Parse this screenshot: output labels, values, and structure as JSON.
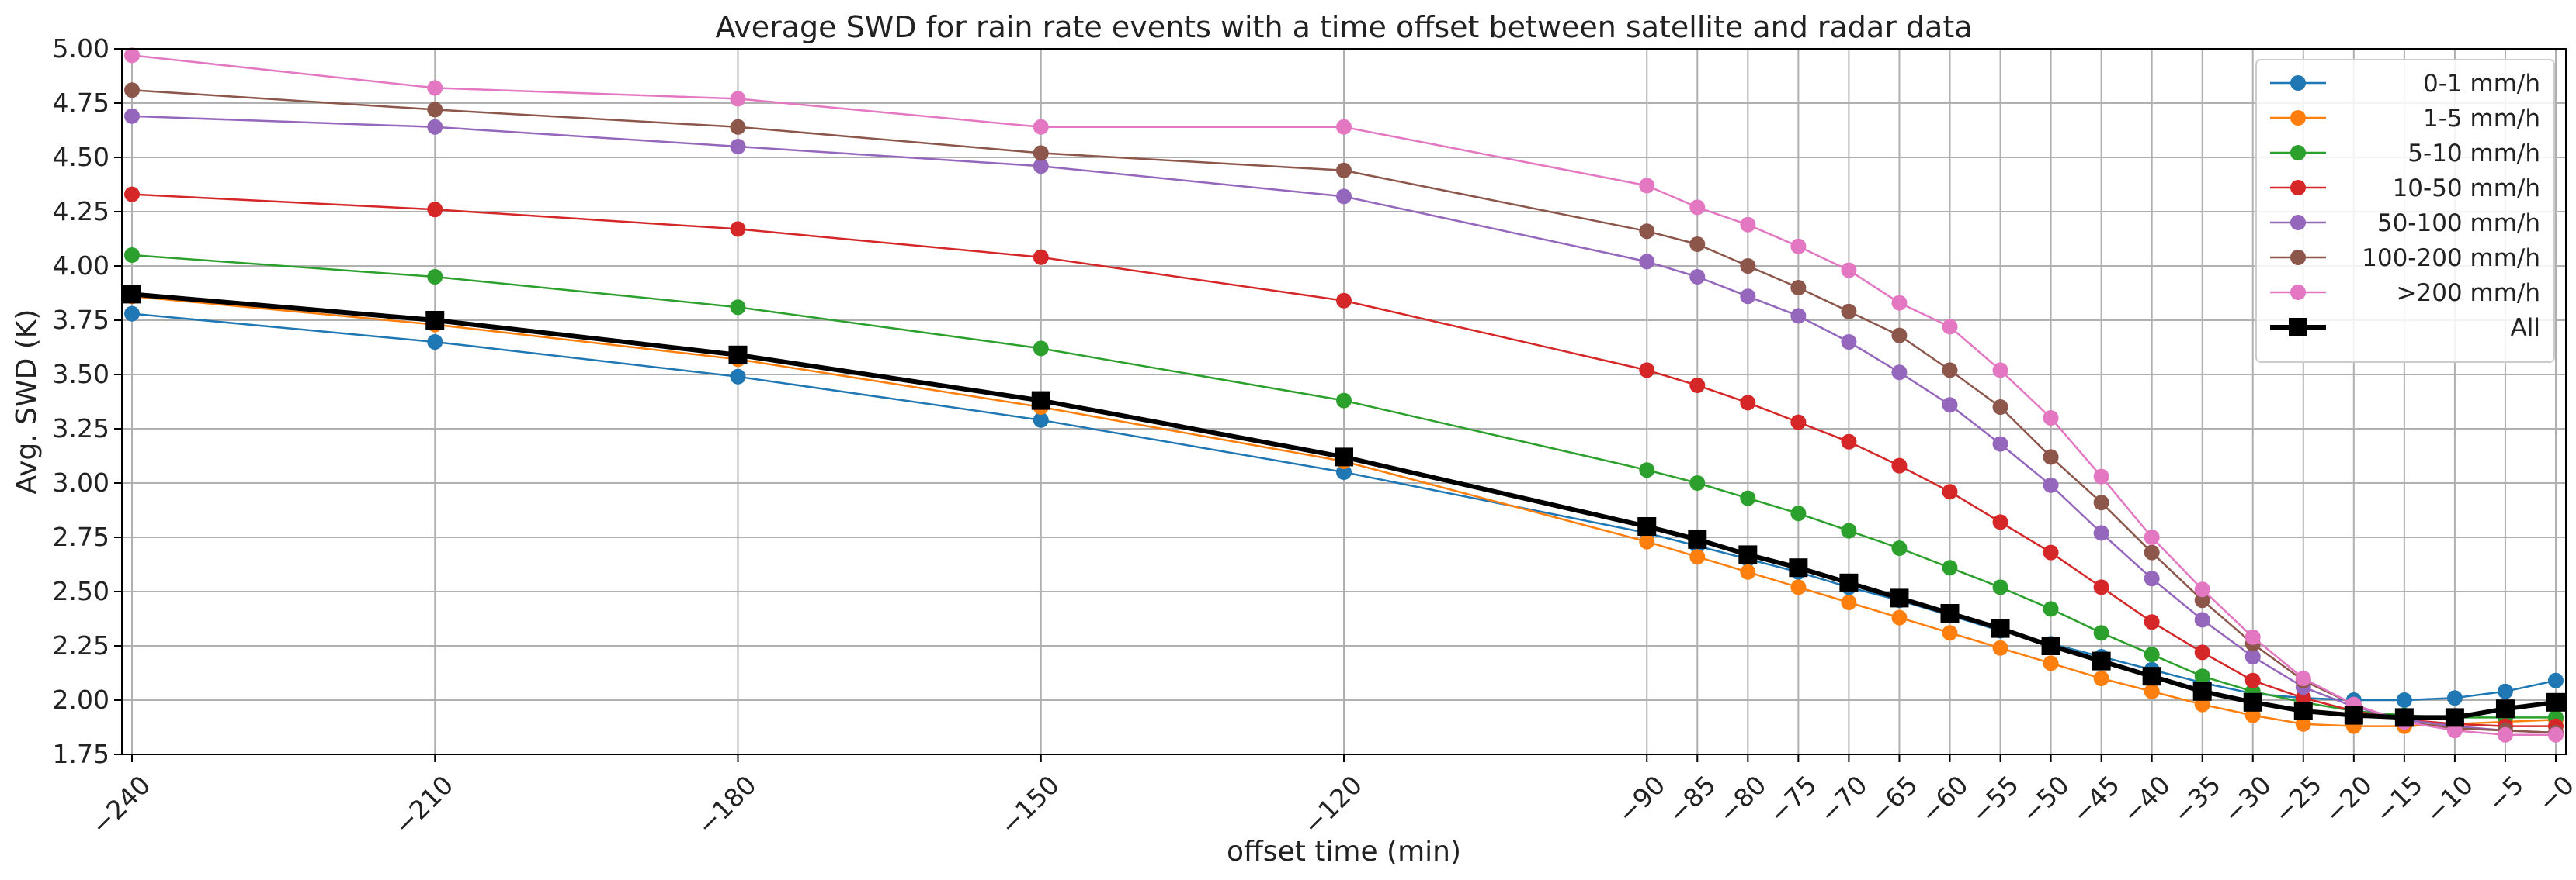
{
  "chart_data": {
    "type": "line",
    "title": "Average SWD for rain rate events with a time offset between satellite and radar data",
    "xlabel": "offset time (min)",
    "ylabel": "Avg. SWD (K)",
    "xlim": [
      -241,
      1
    ],
    "ylim": [
      1.75,
      5.0
    ],
    "grid": true,
    "legend_position": "top-right",
    "x": [
      -240,
      -210,
      -180,
      -150,
      -120,
      -90,
      -85,
      -80,
      -75,
      -70,
      -65,
      -60,
      -55,
      -50,
      -45,
      -40,
      -35,
      -30,
      -25,
      -20,
      -15,
      -10,
      -5,
      0
    ],
    "x_tick_labels": [
      "−240",
      "−210",
      "−180",
      "−150",
      "−120",
      "−90",
      "−85",
      "−80",
      "−75",
      "−70",
      "−65",
      "−60",
      "−55",
      "−50",
      "−45",
      "−40",
      "−35",
      "−30",
      "−25",
      "−20",
      "−15",
      "−10",
      "−5",
      "−0"
    ],
    "y_ticks": [
      1.75,
      2.0,
      2.25,
      2.5,
      2.75,
      3.0,
      3.25,
      3.5,
      3.75,
      4.0,
      4.25,
      4.5,
      4.75,
      5.0
    ],
    "y_tick_labels": [
      "1.75",
      "2.00",
      "2.25",
      "2.50",
      "2.75",
      "3.00",
      "3.25",
      "3.50",
      "3.75",
      "4.00",
      "4.25",
      "4.50",
      "4.75",
      "5.00"
    ],
    "series": [
      {
        "name": "0-1 mm/h",
        "color": "#1f77b4",
        "marker": "circle",
        "values": [
          3.78,
          3.65,
          3.49,
          3.29,
          3.05,
          2.77,
          2.71,
          2.65,
          2.59,
          2.52,
          2.46,
          2.39,
          2.32,
          2.26,
          2.2,
          2.14,
          2.08,
          2.03,
          2.01,
          2.0,
          2.0,
          2.01,
          2.04,
          2.09
        ]
      },
      {
        "name": "1-5 mm/h",
        "color": "#ff7f0e",
        "marker": "circle",
        "values": [
          3.86,
          3.73,
          3.57,
          3.35,
          3.1,
          2.73,
          2.66,
          2.59,
          2.52,
          2.45,
          2.38,
          2.31,
          2.24,
          2.17,
          2.1,
          2.04,
          1.98,
          1.93,
          1.89,
          1.88,
          1.88,
          1.89,
          1.9,
          1.91
        ]
      },
      {
        "name": "5-10 mm/h",
        "color": "#2ca02c",
        "marker": "circle",
        "values": [
          4.05,
          3.95,
          3.81,
          3.62,
          3.38,
          3.06,
          3.0,
          2.93,
          2.86,
          2.78,
          2.7,
          2.61,
          2.52,
          2.42,
          2.31,
          2.21,
          2.11,
          2.04,
          1.99,
          1.95,
          1.93,
          1.92,
          1.92,
          1.92
        ]
      },
      {
        "name": "10-50 mm/h",
        "color": "#d62728",
        "marker": "circle",
        "values": [
          4.33,
          4.26,
          4.17,
          4.04,
          3.84,
          3.52,
          3.45,
          3.37,
          3.28,
          3.19,
          3.08,
          2.96,
          2.82,
          2.68,
          2.52,
          2.36,
          2.22,
          2.09,
          2.01,
          1.95,
          1.91,
          1.89,
          1.88,
          1.88
        ]
      },
      {
        "name": "50-100 mm/h",
        "color": "#9467bd",
        "marker": "circle",
        "values": [
          4.69,
          4.64,
          4.55,
          4.46,
          4.32,
          4.02,
          3.95,
          3.86,
          3.77,
          3.65,
          3.51,
          3.36,
          3.18,
          2.99,
          2.77,
          2.56,
          2.37,
          2.2,
          2.06,
          1.97,
          1.91,
          1.88,
          1.86,
          1.85
        ]
      },
      {
        "name": "100-200 mm/h",
        "color": "#8c564b",
        "marker": "circle",
        "values": [
          4.81,
          4.72,
          4.64,
          4.52,
          4.44,
          4.16,
          4.1,
          4.0,
          3.9,
          3.79,
          3.68,
          3.52,
          3.35,
          3.12,
          2.91,
          2.68,
          2.46,
          2.26,
          2.09,
          1.98,
          1.9,
          1.87,
          1.86,
          1.85
        ]
      },
      {
        "name": ">200 mm/h",
        "color": "#e377c2",
        "marker": "circle",
        "values": [
          4.97,
          4.82,
          4.77,
          4.64,
          4.64,
          4.37,
          4.27,
          4.19,
          4.09,
          3.98,
          3.83,
          3.72,
          3.52,
          3.3,
          3.03,
          2.75,
          2.51,
          2.29,
          2.1,
          1.98,
          1.9,
          1.86,
          1.84,
          1.84
        ]
      },
      {
        "name": "All",
        "color": "#000000",
        "marker": "square",
        "values": [
          3.87,
          3.75,
          3.59,
          3.38,
          3.12,
          2.8,
          2.74,
          2.67,
          2.61,
          2.54,
          2.47,
          2.4,
          2.33,
          2.25,
          2.18,
          2.11,
          2.04,
          1.99,
          1.95,
          1.93,
          1.92,
          1.92,
          1.96,
          1.99
        ]
      }
    ]
  }
}
